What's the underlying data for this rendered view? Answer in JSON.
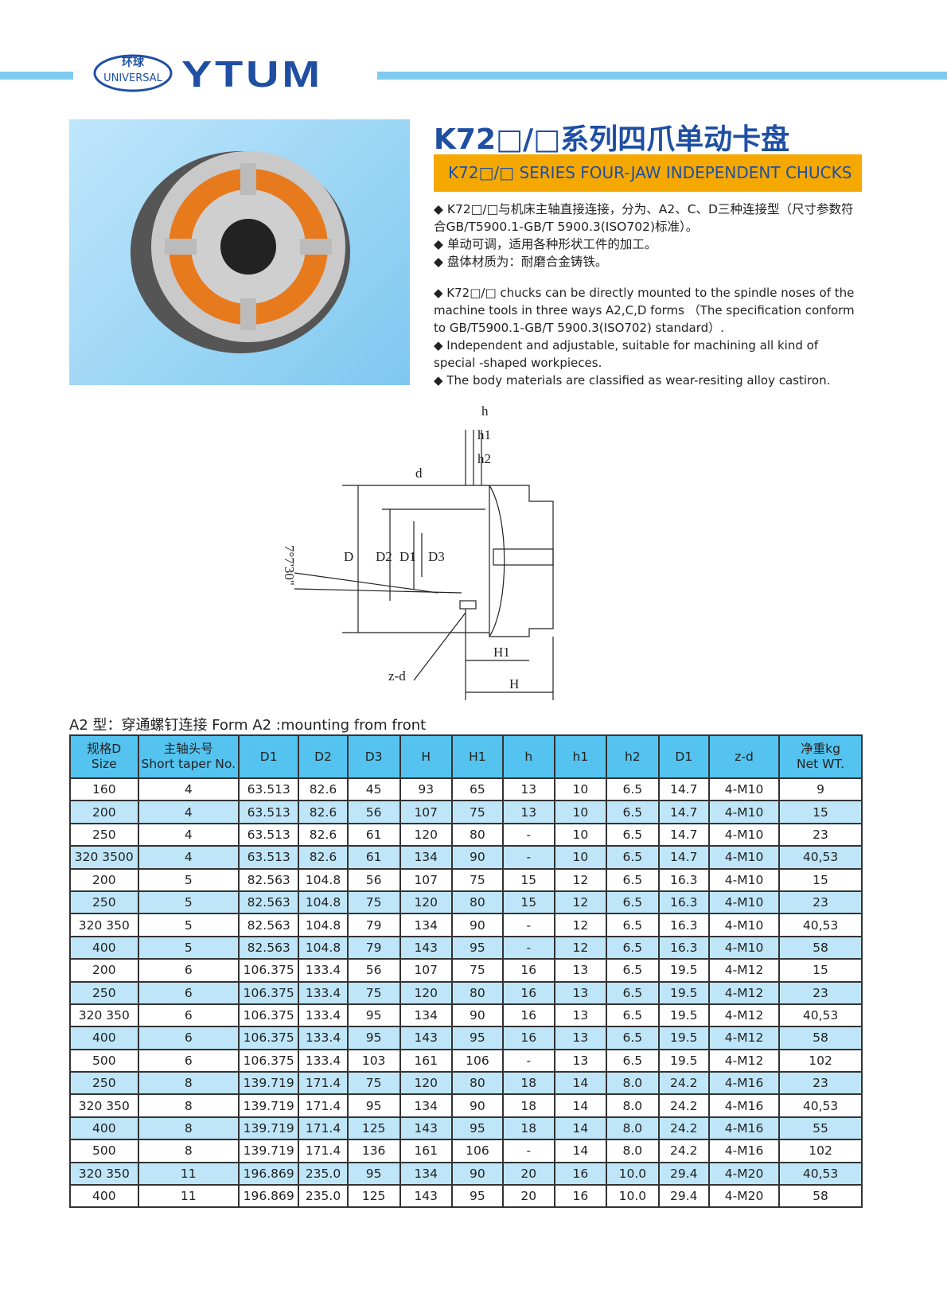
{
  "header": {
    "logo_cn": "环球",
    "logo_en": "UNIVERSAL",
    "brand": "YTUM",
    "colors": {
      "brand_blue": "#1e4fa3",
      "accent_bar": "#7fcaf0",
      "orange": "#f5a800",
      "table_header": "#54c3ef",
      "table_alt": "#bfe6f8"
    }
  },
  "title_cn": "K72□/□系列四爪单动卡盘",
  "title_en": "K72□/□ SERIES FOUR-JAW INDEPENDENT CHUCKS",
  "bullets_cn": [
    "◆ K72□/□与机床主轴直接连接，分为、A2、C、D三种连接型（尺寸参数符合GB/T5900.1-GB/T 5900.3(ISO702)标准）。",
    "◆ 单动可调，适用各种形状工件的加工。",
    "◆ 盘体材质为：耐磨合金铸铁。"
  ],
  "bullets_en": [
    "◆ K72□/□ chucks can be directly mounted to the spindle noses of the machine tools in three ways A2,C,D forms （The specification conform to GB/T5900.1-GB/T 5900.3(ISO702) standard）.",
    "◆ Independent and adjustable, suitable for machining all kind of special -shaped workpieces.",
    "◆ The body materials are classified as wear-resiting alloy castiron."
  ],
  "diagram": {
    "labels": [
      "h",
      "h1",
      "h2",
      "d",
      "D",
      "D2",
      "D1",
      "D3",
      "7°7'30\"",
      "z-d",
      "H1",
      "H"
    ]
  },
  "caption": "A2 型：穿通螺钉连接 Form A2 :mounting from front",
  "table": {
    "headers": [
      [
        "规格D",
        "Size"
      ],
      [
        "主轴头号",
        "Short taper No."
      ],
      [
        "D1"
      ],
      [
        "D2"
      ],
      [
        "D3"
      ],
      [
        "H"
      ],
      [
        "H1"
      ],
      [
        "h"
      ],
      [
        "h1"
      ],
      [
        "h2"
      ],
      [
        "D1"
      ],
      [
        "z-d"
      ],
      [
        "净重kg",
        "Net WT."
      ]
    ],
    "rows": [
      [
        "160",
        "4",
        "63.513",
        "82.6",
        "45",
        "93",
        "65",
        "13",
        "10",
        "6.5",
        "14.7",
        "4-M10",
        "9"
      ],
      [
        "200",
        "4",
        "63.513",
        "82.6",
        "56",
        "107",
        "75",
        "13",
        "10",
        "6.5",
        "14.7",
        "4-M10",
        "15"
      ],
      [
        "250",
        "4",
        "63.513",
        "82.6",
        "61",
        "120",
        "80",
        "-",
        "10",
        "6.5",
        "14.7",
        "4-M10",
        "23"
      ],
      [
        "320 3500",
        "4",
        "63.513",
        "82.6",
        "61",
        "134",
        "90",
        "-",
        "10",
        "6.5",
        "14.7",
        "4-M10",
        "40,53"
      ],
      [
        "200",
        "5",
        "82.563",
        "104.8",
        "56",
        "107",
        "75",
        "15",
        "12",
        "6.5",
        "16.3",
        "4-M10",
        "15"
      ],
      [
        "250",
        "5",
        "82.563",
        "104.8",
        "75",
        "120",
        "80",
        "15",
        "12",
        "6.5",
        "16.3",
        "4-M10",
        "23"
      ],
      [
        "320 350",
        "5",
        "82.563",
        "104.8",
        "79",
        "134",
        "90",
        "-",
        "12",
        "6.5",
        "16.3",
        "4-M10",
        "40,53"
      ],
      [
        "400",
        "5",
        "82.563",
        "104.8",
        "79",
        "143",
        "95",
        "-",
        "12",
        "6.5",
        "16.3",
        "4-M10",
        "58"
      ],
      [
        "200",
        "6",
        "106.375",
        "133.4",
        "56",
        "107",
        "75",
        "16",
        "13",
        "6.5",
        "19.5",
        "4-M12",
        "15"
      ],
      [
        "250",
        "6",
        "106.375",
        "133.4",
        "75",
        "120",
        "80",
        "16",
        "13",
        "6.5",
        "19.5",
        "4-M12",
        "23"
      ],
      [
        "320 350",
        "6",
        "106.375",
        "133.4",
        "95",
        "134",
        "90",
        "16",
        "13",
        "6.5",
        "19.5",
        "4-M12",
        "40,53"
      ],
      [
        "400",
        "6",
        "106.375",
        "133.4",
        "95",
        "143",
        "95",
        "16",
        "13",
        "6.5",
        "19.5",
        "4-M12",
        "58"
      ],
      [
        "500",
        "6",
        "106.375",
        "133.4",
        "103",
        "161",
        "106",
        "-",
        "13",
        "6.5",
        "19.5",
        "4-M12",
        "102"
      ],
      [
        "250",
        "8",
        "139.719",
        "171.4",
        "75",
        "120",
        "80",
        "18",
        "14",
        "8.0",
        "24.2",
        "4-M16",
        "23"
      ],
      [
        "320 350",
        "8",
        "139.719",
        "171.4",
        "95",
        "134",
        "90",
        "18",
        "14",
        "8.0",
        "24.2",
        "4-M16",
        "40,53"
      ],
      [
        "400",
        "8",
        "139.719",
        "171.4",
        "125",
        "143",
        "95",
        "18",
        "14",
        "8.0",
        "24.2",
        "4-M16",
        "55"
      ],
      [
        "500",
        "8",
        "139.719",
        "171.4",
        "136",
        "161",
        "106",
        "-",
        "14",
        "8.0",
        "24.2",
        "4-M16",
        "102"
      ],
      [
        "320 350",
        "11",
        "196.869",
        "235.0",
        "95",
        "134",
        "90",
        "20",
        "16",
        "10.0",
        "29.4",
        "4-M20",
        "40,53"
      ],
      [
        "400",
        "11",
        "196.869",
        "235.0",
        "125",
        "143",
        "95",
        "20",
        "16",
        "10.0",
        "29.4",
        "4-M20",
        "58"
      ]
    ]
  }
}
